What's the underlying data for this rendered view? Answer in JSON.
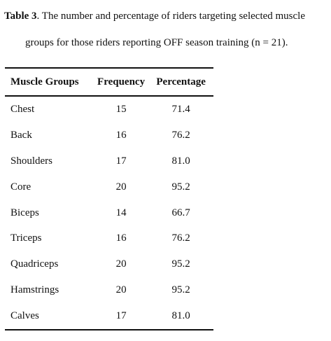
{
  "caption": {
    "label": "Table 3",
    "text_line1": ". The number and percentage of riders targeting selected muscle",
    "text_line2": "groups for those riders reporting OFF season training (n = 21)."
  },
  "table": {
    "headers": [
      "Muscle Groups",
      "Frequency",
      "Percentage"
    ],
    "rows": [
      {
        "group": "Chest",
        "frequency": "15",
        "percentage": "71.4"
      },
      {
        "group": "Back",
        "frequency": "16",
        "percentage": "76.2"
      },
      {
        "group": "Shoulders",
        "frequency": "17",
        "percentage": "81.0"
      },
      {
        "group": "Core",
        "frequency": "20",
        "percentage": "95.2"
      },
      {
        "group": "Biceps",
        "frequency": "14",
        "percentage": "66.7"
      },
      {
        "group": "Triceps",
        "frequency": "16",
        "percentage": "76.2"
      },
      {
        "group": "Quadriceps",
        "frequency": "20",
        "percentage": "95.2"
      },
      {
        "group": "Hamstrings",
        "frequency": "20",
        "percentage": "95.2"
      },
      {
        "group": "Calves",
        "frequency": "17",
        "percentage": "81.0"
      }
    ]
  }
}
